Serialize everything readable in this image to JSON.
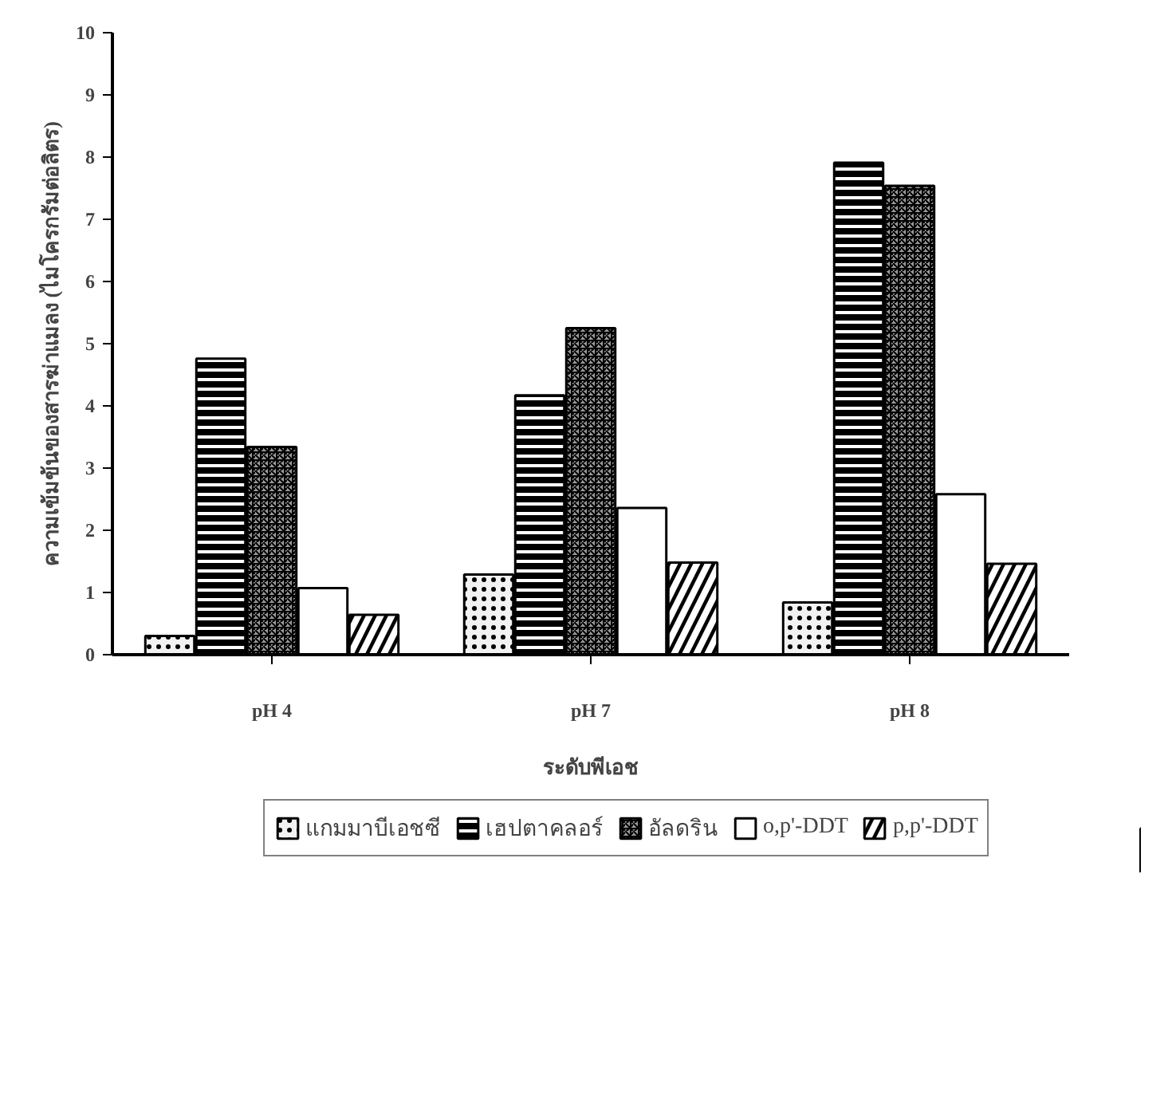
{
  "chart_data": {
    "type": "bar",
    "xlabel": "ระดับพีเอช",
    "ylabel": "ความเข้มข้นของสารฆ่าแมลง (ไมโครกรัมต่อลิตร)",
    "categories": [
      "pH 4",
      "pH 7",
      "pH 8"
    ],
    "series": [
      {
        "name": "แกมมาบีเอชซี",
        "color": "#f2f2f2",
        "values": [
          0.3,
          1.29,
          0.84
        ]
      },
      {
        "name": "เฮปตาคลอร์",
        "color": "#000000",
        "values": [
          4.76,
          4.17,
          7.91
        ]
      },
      {
        "name": "อัลดริน",
        "color": "#9a9a9a",
        "values": [
          3.34,
          5.25,
          7.54
        ]
      },
      {
        "name": "o,p'-DDT",
        "color": "#ffffff",
        "values": [
          1.07,
          2.36,
          2.58
        ]
      },
      {
        "name": "p,p'-DDT",
        "color": "#000000",
        "values": [
          0.64,
          1.48,
          1.46
        ]
      }
    ],
    "ylim": [
      0,
      10
    ],
    "yticks": [
      0,
      1,
      2,
      3,
      4,
      5,
      6,
      7,
      8,
      9,
      10
    ],
    "grid": false,
    "legend": "bottom"
  }
}
